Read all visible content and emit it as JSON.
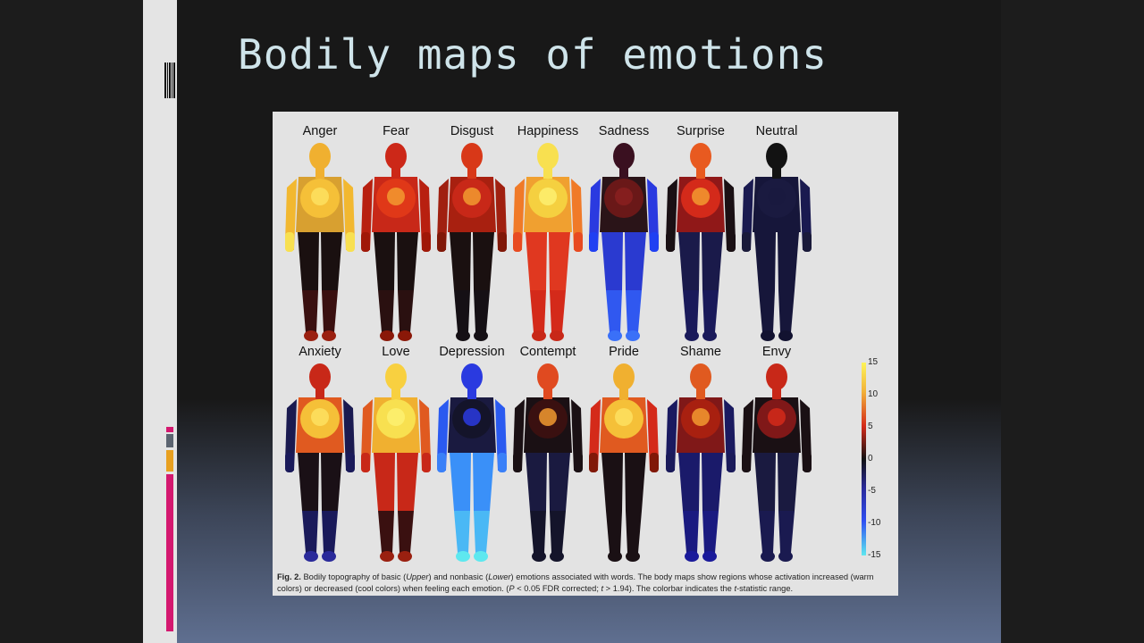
{
  "slide": {
    "title": "Bodily maps of emotions"
  },
  "figure": {
    "rows": [
      [
        {
          "label": "Anger",
          "map": {
            "head": "#f0b030",
            "chest": "#f5c038",
            "belly": "#d8a030",
            "arms": "#f2b830",
            "hands": "#f8e050",
            "upperlegs": "#1a1010",
            "lowerlegs": "#3a1010",
            "feet": "#9a2010",
            "dot": "#fde060"
          }
        },
        {
          "label": "Fear",
          "map": {
            "head": "#cc2818",
            "chest": "#e03818",
            "belly": "#c82818",
            "arms": "#b82010",
            "hands": "#a01808",
            "upperlegs": "#1a1010",
            "lowerlegs": "#2a1010",
            "feet": "#8a1808",
            "dot": "#f29a30"
          }
        },
        {
          "label": "Disgust",
          "map": {
            "head": "#d83818",
            "chest": "#c82818",
            "belly": "#a82010",
            "arms": "#a02010",
            "hands": "#801808",
            "upperlegs": "#1a1010",
            "lowerlegs": "#151015",
            "feet": "#151015",
            "dot": "#f29a30"
          }
        },
        {
          "label": "Happiness",
          "map": {
            "head": "#f8e050",
            "chest": "#f5d040",
            "belly": "#f0a030",
            "arms": "#f07a28",
            "hands": "#e84a20",
            "upperlegs": "#e03820",
            "lowerlegs": "#d42a1a",
            "feet": "#c82818",
            "dot": "#fdf070"
          }
        },
        {
          "label": "Sadness",
          "map": {
            "head": "#3a1020",
            "chest": "#6a1818",
            "belly": "#2a1418",
            "arms": "#2a3ae0",
            "hands": "#2040f2",
            "upperlegs": "#2a3ad0",
            "lowerlegs": "#3058f0",
            "feet": "#3a70f8",
            "dot": "#8a2020"
          }
        },
        {
          "label": "Surprise",
          "map": {
            "head": "#e85a20",
            "chest": "#d42a1a",
            "belly": "#901818",
            "arms": "#1a1014",
            "hands": "#1a1014",
            "upperlegs": "#1a1a4a",
            "lowerlegs": "#1a1a5a",
            "feet": "#1a1a5a",
            "dot": "#f29a30"
          }
        },
        {
          "label": "Neutral",
          "map": {
            "head": "#121212",
            "chest": "#1a1a40",
            "belly": "#16163a",
            "arms": "#1a1a50",
            "hands": "#1a1a3a",
            "upperlegs": "#16163a",
            "lowerlegs": "#16163a",
            "feet": "#121230",
            "dot": "#1a1a40"
          }
        }
      ],
      [
        {
          "label": "Anxiety",
          "map": {
            "head": "#c82818",
            "chest": "#f5c038",
            "belly": "#e05a20",
            "arms": "#1a1a50",
            "hands": "#1a1a5a",
            "upperlegs": "#1a1016",
            "lowerlegs": "#1a1a5a",
            "feet": "#2a2a9a",
            "dot": "#fde060"
          }
        },
        {
          "label": "Love",
          "map": {
            "head": "#f8d040",
            "chest": "#f8e050",
            "belly": "#f0b030",
            "arms": "#e05a20",
            "hands": "#c82818",
            "upperlegs": "#c82818",
            "lowerlegs": "#3a1010",
            "feet": "#9a2010",
            "dot": "#fdf070"
          }
        },
        {
          "label": "Depression",
          "map": {
            "head": "#2a3ae0",
            "chest": "#14142a",
            "belly": "#1a1a40",
            "arms": "#2a5af0",
            "hands": "#3a80f8",
            "upperlegs": "#3a90f8",
            "lowerlegs": "#4ab8f5",
            "feet": "#5ee8ef",
            "dot": "#2a3ae0"
          }
        },
        {
          "label": "Contempt",
          "map": {
            "head": "#e04a20",
            "chest": "#3a1010",
            "belly": "#1a1014",
            "arms": "#1a1014",
            "hands": "#1a1014",
            "upperlegs": "#1a1a40",
            "lowerlegs": "#14142a",
            "feet": "#14142a",
            "dot": "#f29a30"
          }
        },
        {
          "label": "Pride",
          "map": {
            "head": "#f0b030",
            "chest": "#f5c038",
            "belly": "#e05a20",
            "arms": "#d42a1a",
            "hands": "#801808",
            "upperlegs": "#1a1014",
            "lowerlegs": "#1a1014",
            "feet": "#1a1014",
            "dot": "#fde060"
          }
        },
        {
          "label": "Shame",
          "map": {
            "head": "#e05a20",
            "chest": "#a82010",
            "belly": "#801818",
            "arms": "#1a1a60",
            "hands": "#1a1a5a",
            "upperlegs": "#1a1a6a",
            "lowerlegs": "#1a1a80",
            "feet": "#1a1a9a",
            "dot": "#f29a30"
          }
        },
        {
          "label": "Envy",
          "map": {
            "head": "#c82818",
            "chest": "#801818",
            "belly": "#1a1014",
            "arms": "#1a1014",
            "hands": "#1a1014",
            "upperlegs": "#1a1a40",
            "lowerlegs": "#1a1a50",
            "feet": "#1a1a50",
            "dot": "#d42a1a"
          }
        }
      ]
    ],
    "colorbar": {
      "ticks": [
        "15",
        "10",
        "5",
        "0",
        "-5",
        "-10",
        "-15"
      ]
    },
    "caption": {
      "fig_label": "Fig. 2.",
      "t1": " Bodily topography of basic (",
      "t2": "Upper",
      "t3": ") and nonbasic (",
      "t4": "Lower",
      "t5": ") emotions associated with words. The body maps show regions whose activation increased (warm colors) or decreased (cool colors) when feeling each emotion. (",
      "t6": "P",
      "t7": " < 0.05 FDR corrected; ",
      "t8": "t",
      "t9": " > 1.94). The colorbar indicates the ",
      "t10": "t",
      "t11": "-statistic range."
    }
  },
  "sidebar_accents": [
    "#d4186f",
    "#5c6470",
    "#e8a020"
  ]
}
